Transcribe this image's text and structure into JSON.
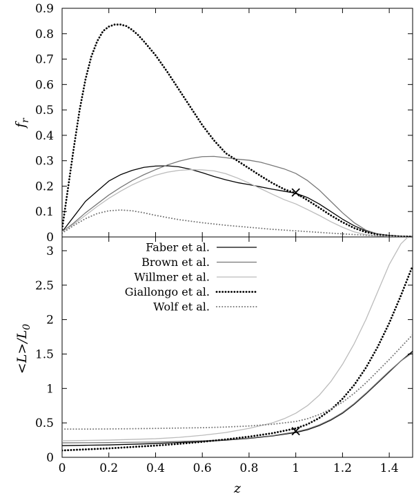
{
  "chart_data": [
    {
      "type": "line",
      "panel": "top",
      "xlabel": "",
      "ylabel_main": "f",
      "ylabel_sub": "r",
      "xlim": [
        0,
        1.5
      ],
      "ylim": [
        0,
        0.9
      ],
      "xticks": [
        0,
        0.2,
        0.4,
        0.6,
        0.8,
        1,
        1.2,
        1.4
      ],
      "yticks": [
        "0",
        "0.1",
        "0.2",
        "0.3",
        "0.4",
        "0.5",
        "0.6",
        "0.7",
        "0.8",
        "0.9"
      ],
      "grid": false,
      "series": [
        {
          "name": "Faber et al.",
          "color": "#000000",
          "dash": "solid",
          "x": [
            0,
            0.05,
            0.1,
            0.15,
            0.2,
            0.25,
            0.3,
            0.35,
            0.4,
            0.45,
            0.5,
            0.55,
            0.6,
            0.65,
            0.7,
            0.75,
            0.8,
            0.85,
            0.9,
            0.95,
            1.0,
            1.05,
            1.1,
            1.15,
            1.2,
            1.25,
            1.3,
            1.35,
            1.4,
            1.45,
            1.5
          ],
          "y": [
            0.02,
            0.08,
            0.14,
            0.18,
            0.22,
            0.245,
            0.262,
            0.274,
            0.279,
            0.28,
            0.276,
            0.266,
            0.253,
            0.238,
            0.225,
            0.214,
            0.206,
            0.197,
            0.188,
            0.18,
            0.172,
            0.155,
            0.13,
            0.1,
            0.07,
            0.044,
            0.024,
            0.012,
            0.006,
            0.003,
            0.002
          ]
        },
        {
          "name": "Brown et al.",
          "color": "#777777",
          "dash": "solid",
          "x": [
            0,
            0.05,
            0.1,
            0.15,
            0.2,
            0.25,
            0.3,
            0.35,
            0.4,
            0.45,
            0.5,
            0.55,
            0.6,
            0.65,
            0.7,
            0.75,
            0.8,
            0.85,
            0.9,
            0.95,
            1.0,
            1.05,
            1.1,
            1.15,
            1.2,
            1.25,
            1.3,
            1.35,
            1.4,
            1.45,
            1.5
          ],
          "y": [
            0.02,
            0.055,
            0.095,
            0.13,
            0.165,
            0.195,
            0.222,
            0.245,
            0.265,
            0.283,
            0.298,
            0.309,
            0.316,
            0.317,
            0.312,
            0.306,
            0.302,
            0.294,
            0.281,
            0.268,
            0.25,
            0.222,
            0.185,
            0.14,
            0.095,
            0.056,
            0.027,
            0.012,
            0.005,
            0.002,
            0.001
          ]
        },
        {
          "name": "Willmer et al.",
          "color": "#bbbbbb",
          "dash": "solid",
          "x": [
            0,
            0.05,
            0.1,
            0.15,
            0.2,
            0.25,
            0.3,
            0.35,
            0.4,
            0.45,
            0.5,
            0.55,
            0.6,
            0.65,
            0.7,
            0.75,
            0.8,
            0.85,
            0.9,
            0.95,
            1.0,
            1.05,
            1.1,
            1.15,
            1.2,
            1.25,
            1.3,
            1.35,
            1.4,
            1.45,
            1.5
          ],
          "y": [
            0.02,
            0.05,
            0.085,
            0.12,
            0.152,
            0.18,
            0.205,
            0.226,
            0.243,
            0.255,
            0.262,
            0.265,
            0.264,
            0.26,
            0.249,
            0.232,
            0.212,
            0.19,
            0.168,
            0.147,
            0.13,
            0.108,
            0.085,
            0.06,
            0.038,
            0.02,
            0.009,
            0.004,
            0.002,
            0.001,
            0.0
          ]
        },
        {
          "name": "Giallongo et al.",
          "color": "#000000",
          "dash": "dotted-thick",
          "x": [
            0,
            0.025,
            0.05,
            0.075,
            0.1,
            0.125,
            0.15,
            0.175,
            0.2,
            0.225,
            0.25,
            0.275,
            0.3,
            0.325,
            0.35,
            0.4,
            0.45,
            0.5,
            0.55,
            0.6,
            0.65,
            0.7,
            0.75,
            0.8,
            0.85,
            0.9,
            0.95,
            1.0,
            1.05,
            1.1,
            1.15,
            1.2,
            1.25,
            1.3,
            1.35,
            1.4,
            1.45,
            1.5
          ],
          "y": [
            0.03,
            0.19,
            0.35,
            0.5,
            0.62,
            0.71,
            0.77,
            0.81,
            0.828,
            0.836,
            0.836,
            0.83,
            0.815,
            0.795,
            0.77,
            0.715,
            0.65,
            0.58,
            0.51,
            0.44,
            0.38,
            0.33,
            0.3,
            0.27,
            0.24,
            0.212,
            0.188,
            0.172,
            0.145,
            0.115,
            0.085,
            0.058,
            0.035,
            0.019,
            0.01,
            0.005,
            0.002,
            0.001
          ]
        },
        {
          "name": "Wolf et al.",
          "color": "#777777",
          "dash": "dotted",
          "x": [
            0,
            0.05,
            0.1,
            0.15,
            0.2,
            0.25,
            0.3,
            0.35,
            0.4,
            0.5,
            0.6,
            0.7,
            0.8,
            0.9,
            1.0,
            1.1,
            1.2,
            1.3,
            1.4,
            1.5
          ],
          "y": [
            0.015,
            0.045,
            0.072,
            0.092,
            0.103,
            0.106,
            0.103,
            0.095,
            0.085,
            0.068,
            0.056,
            0.046,
            0.038,
            0.03,
            0.024,
            0.018,
            0.012,
            0.007,
            0.003,
            0.001
          ]
        }
      ],
      "markers": [
        {
          "x": 1.0,
          "y": 0.175,
          "symbol": "cross"
        }
      ]
    },
    {
      "type": "line",
      "panel": "bottom",
      "xlabel": "z",
      "ylabel": "<L>/L",
      "ylabel_sub": "0",
      "xlim": [
        0,
        1.5
      ],
      "ylim": [
        0,
        3.2
      ],
      "xticks": [
        0,
        0.2,
        0.4,
        0.6,
        0.8,
        1,
        1.2,
        1.4
      ],
      "xtick_labels": [
        "0",
        "0.2",
        "0.4",
        "0.6",
        "0.8",
        "1",
        "1.2",
        "1.4"
      ],
      "yticks": [
        "0",
        "0.5",
        "1",
        "1.5",
        "2",
        "2.5",
        "3"
      ],
      "grid": false,
      "legend_position": "top-center",
      "series": [
        {
          "name": "Faber et al.",
          "color": "#000000",
          "dash": "solid",
          "x": [
            0,
            0.1,
            0.2,
            0.3,
            0.4,
            0.5,
            0.6,
            0.7,
            0.8,
            0.9,
            1.0,
            1.05,
            1.1,
            1.15,
            1.2,
            1.25,
            1.3,
            1.35,
            1.4,
            1.45,
            1.5
          ],
          "y": [
            0.17,
            0.175,
            0.18,
            0.19,
            0.2,
            0.215,
            0.23,
            0.25,
            0.275,
            0.31,
            0.36,
            0.4,
            0.46,
            0.54,
            0.64,
            0.77,
            0.92,
            1.08,
            1.24,
            1.4,
            1.54
          ]
        },
        {
          "name": "Brown et al.",
          "color": "#777777",
          "dash": "solid",
          "x": [
            0,
            0.1,
            0.2,
            0.3,
            0.4,
            0.5,
            0.6,
            0.7,
            0.8,
            0.9,
            1.0,
            1.05,
            1.1,
            1.15,
            1.2,
            1.25,
            1.3,
            1.35,
            1.4,
            1.45,
            1.5
          ],
          "y": [
            0.21,
            0.212,
            0.214,
            0.218,
            0.222,
            0.23,
            0.24,
            0.256,
            0.28,
            0.315,
            0.37,
            0.41,
            0.47,
            0.55,
            0.65,
            0.78,
            0.93,
            1.09,
            1.25,
            1.4,
            1.52
          ]
        },
        {
          "name": "Willmer et al.",
          "color": "#bbbbbb",
          "dash": "solid",
          "x": [
            0,
            0.1,
            0.2,
            0.3,
            0.4,
            0.5,
            0.6,
            0.7,
            0.8,
            0.9,
            0.95,
            1.0,
            1.05,
            1.1,
            1.15,
            1.2,
            1.25,
            1.3,
            1.35,
            1.4,
            1.45,
            1.48
          ],
          "y": [
            0.24,
            0.245,
            0.25,
            0.26,
            0.27,
            0.29,
            0.32,
            0.36,
            0.42,
            0.5,
            0.56,
            0.64,
            0.75,
            0.9,
            1.1,
            1.35,
            1.65,
            2.0,
            2.4,
            2.8,
            3.1,
            3.2
          ]
        },
        {
          "name": "Giallongo et al.",
          "color": "#000000",
          "dash": "dotted-thick",
          "x": [
            0,
            0.1,
            0.2,
            0.3,
            0.4,
            0.5,
            0.6,
            0.7,
            0.8,
            0.9,
            1.0,
            1.05,
            1.1,
            1.15,
            1.2,
            1.25,
            1.3,
            1.35,
            1.4,
            1.45,
            1.5
          ],
          "y": [
            0.1,
            0.115,
            0.13,
            0.15,
            0.17,
            0.195,
            0.225,
            0.26,
            0.3,
            0.35,
            0.42,
            0.48,
            0.57,
            0.69,
            0.85,
            1.05,
            1.3,
            1.6,
            1.95,
            2.35,
            2.78
          ]
        },
        {
          "name": "Wolf et al.",
          "color": "#777777",
          "dash": "dotted",
          "x": [
            0,
            0.1,
            0.2,
            0.3,
            0.4,
            0.5,
            0.6,
            0.7,
            0.8,
            0.9,
            1.0,
            1.05,
            1.1,
            1.15,
            1.2,
            1.25,
            1.3,
            1.35,
            1.4,
            1.45,
            1.5
          ],
          "y": [
            0.41,
            0.41,
            0.412,
            0.415,
            0.42,
            0.425,
            0.43,
            0.44,
            0.455,
            0.48,
            0.52,
            0.56,
            0.62,
            0.7,
            0.8,
            0.93,
            1.08,
            1.25,
            1.42,
            1.6,
            1.78
          ]
        }
      ],
      "markers": [
        {
          "x": 1.0,
          "y": 0.38,
          "symbol": "cross"
        }
      ]
    }
  ]
}
